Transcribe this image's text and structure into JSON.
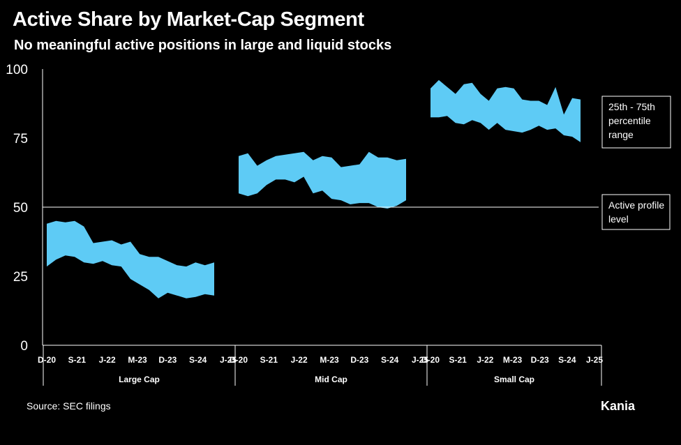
{
  "title": "Active Share by Market-Cap Segment",
  "subtitle": "No meaningful active positions in large and liquid stocks",
  "source": "Source: SEC filings",
  "brand": "Kania",
  "colors": {
    "band": "#5ECBF5",
    "background": "#000000",
    "text": "#FFFFFF"
  },
  "chart_data": {
    "type": "area",
    "ylim": [
      0,
      100
    ],
    "yticks": [
      "0",
      "25",
      "50",
      "75",
      "100"
    ],
    "grid": false,
    "reference_line": {
      "value": 50,
      "label": "Active profile level"
    },
    "legend": {
      "label": "25th - 75th percentile range",
      "placement": "right"
    },
    "xticks": [
      "D-20",
      "S-21",
      "J-22",
      "M-23",
      "D-23",
      "S-24",
      "J-25"
    ],
    "panels": [
      {
        "name": "Large Cap",
        "upper": [
          44,
          45,
          44.5,
          45,
          43,
          37,
          37.5,
          38,
          36.5,
          37.5,
          33,
          32,
          32,
          30.5,
          29,
          28.5,
          30,
          29,
          30
        ],
        "lower": [
          28.5,
          31,
          32.5,
          32,
          30,
          29.5,
          30.5,
          29,
          28.5,
          24,
          22,
          20,
          17,
          19,
          18,
          17,
          17.5,
          18.5,
          18
        ]
      },
      {
        "name": "Mid Cap",
        "upper": [
          68.5,
          69.5,
          65,
          67,
          68.5,
          69,
          69.5,
          70,
          67,
          68.5,
          68,
          64.5,
          65,
          65.5,
          70,
          68,
          68,
          67,
          67.5
        ],
        "lower": [
          55,
          54,
          55,
          58,
          60,
          60,
          59,
          61,
          55,
          56,
          53,
          52.5,
          51,
          51.5,
          51.5,
          50,
          49.5,
          50.5,
          52.5
        ]
      },
      {
        "name": "Small Cap",
        "upper": [
          93,
          96,
          93.5,
          91,
          94.5,
          95,
          91,
          88.5,
          93,
          93.5,
          93,
          89,
          88.5,
          88.5,
          87,
          93.5,
          83.5,
          89.5,
          89
        ],
        "lower": [
          82.5,
          82.5,
          83,
          80.5,
          80,
          81.5,
          80.5,
          78,
          80.5,
          78,
          77.5,
          77,
          78,
          79.5,
          78,
          78.5,
          76,
          75.5,
          73.5
        ]
      }
    ]
  }
}
